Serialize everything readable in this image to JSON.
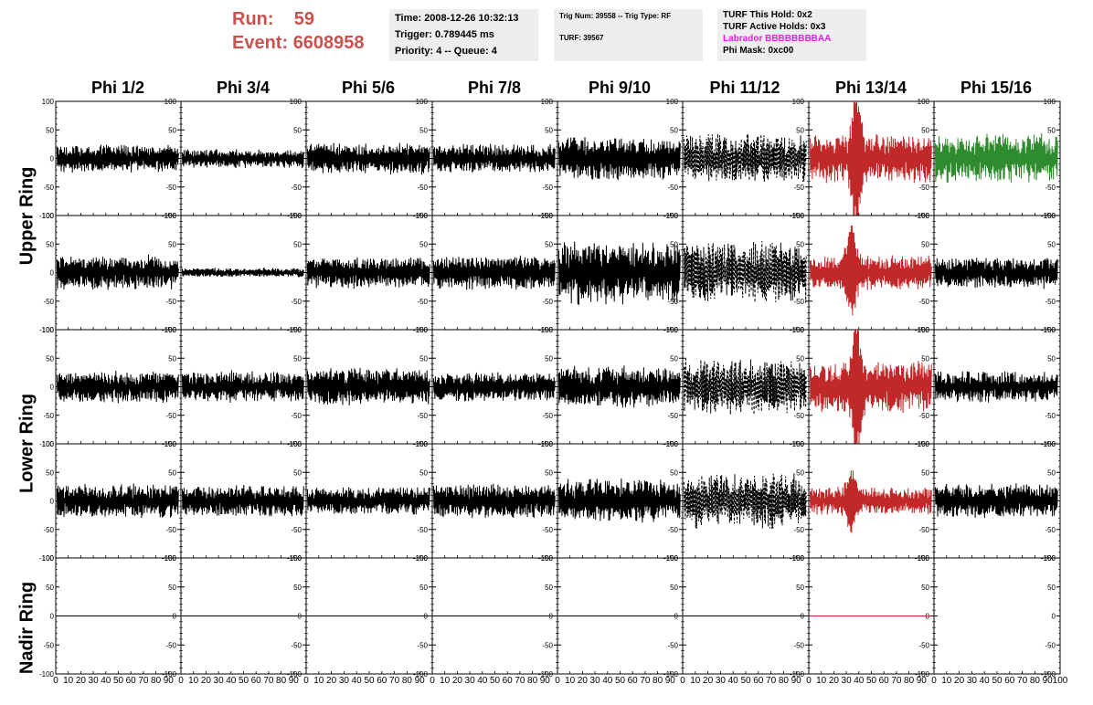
{
  "header": {
    "run_label": "Run:",
    "run_value": "59",
    "event_label": "Event:",
    "event_value": "6608958",
    "info_time": {
      "time": "Time: 2008-12-26 10:32:13",
      "trigger": "Trigger: 0.789445 ms",
      "priority": "Priority: 4 -- Queue: 4"
    },
    "info_trig": {
      "trig": "Trig Num: 39558 -- Trig Type: RF",
      "turf": "TURF: 39567"
    },
    "info_turf": {
      "this_hold": "TURF This Hold: 0x2",
      "active_holds": "TURF Active Holds: 0x3",
      "labrador": "Labrador BBBBBBBBAA",
      "phi_mask": "Phi Mask: 0xc00"
    }
  },
  "colors": {
    "title_red": "#c9524f",
    "labrador_magenta": "#e61ee6",
    "trace_black": "#000000",
    "trace_red": "#c0282a",
    "trace_green": "#2e8b2e",
    "info_bg": "#eeeeee"
  },
  "columns": [
    "Phi 1/2",
    "Phi 3/4",
    "Phi 5/6",
    "Phi 7/8",
    "Phi 9/10",
    "Phi 11/12",
    "Phi 13/14",
    "Phi 15/16"
  ],
  "rings": [
    "Upper Ring",
    "Lower Ring",
    "Nadir Ring"
  ],
  "chart_data": {
    "type": "line",
    "grid": false,
    "xlim": [
      0,
      100
    ],
    "ylim": [
      -100,
      100
    ],
    "xticks": [
      "0",
      "10",
      "20",
      "30",
      "40",
      "50",
      "60",
      "70",
      "80",
      "90",
      "100"
    ],
    "yticks": [
      "100",
      "50",
      "0",
      "-50",
      "-100"
    ],
    "rows": [
      {
        "ring": "Upper Ring",
        "panels": [
          {
            "amp": 18,
            "color": "black",
            "style": "solid"
          },
          {
            "amp": 12,
            "color": "black",
            "style": "solid"
          },
          {
            "amp": 20,
            "color": "black",
            "style": "solid"
          },
          {
            "amp": 18,
            "color": "black",
            "style": "solid"
          },
          {
            "amp": 28,
            "color": "black",
            "style": "solid"
          },
          {
            "amp": 32,
            "color": "black",
            "style": "dashed"
          },
          {
            "amp": 32,
            "color": "red",
            "style": "solid",
            "peak_x": 38,
            "peak_amp": 100
          },
          {
            "amp": 32,
            "color": "green",
            "style": "solid"
          }
        ]
      },
      {
        "ring": "Upper Ring",
        "panels": [
          {
            "amp": 22,
            "color": "black",
            "style": "solid"
          },
          {
            "amp": 6,
            "color": "black",
            "style": "solid"
          },
          {
            "amp": 20,
            "color": "black",
            "style": "solid"
          },
          {
            "amp": 22,
            "color": "black",
            "style": "solid"
          },
          {
            "amp": 40,
            "color": "black",
            "style": "solid"
          },
          {
            "amp": 40,
            "color": "black",
            "style": "dashed"
          },
          {
            "amp": 22,
            "color": "red",
            "style": "solid",
            "peak_x": 34,
            "peak_amp": 65
          },
          {
            "amp": 20,
            "color": "black",
            "style": "solid"
          }
        ]
      },
      {
        "ring": "Lower Ring",
        "panels": [
          {
            "amp": 20,
            "color": "black",
            "style": "solid"
          },
          {
            "amp": 20,
            "color": "black",
            "style": "solid"
          },
          {
            "amp": 24,
            "color": "black",
            "style": "solid"
          },
          {
            "amp": 18,
            "color": "black",
            "style": "solid"
          },
          {
            "amp": 26,
            "color": "black",
            "style": "solid"
          },
          {
            "amp": 35,
            "color": "black",
            "style": "dashed"
          },
          {
            "amp": 32,
            "color": "red",
            "style": "solid",
            "peak_x": 38,
            "peak_amp": 95
          },
          {
            "amp": 20,
            "color": "black",
            "style": "solid"
          }
        ]
      },
      {
        "ring": "Lower Ring",
        "panels": [
          {
            "amp": 22,
            "color": "black",
            "style": "solid"
          },
          {
            "amp": 20,
            "color": "black",
            "style": "solid"
          },
          {
            "amp": 18,
            "color": "black",
            "style": "solid"
          },
          {
            "amp": 22,
            "color": "black",
            "style": "solid"
          },
          {
            "amp": 28,
            "color": "black",
            "style": "solid"
          },
          {
            "amp": 35,
            "color": "black",
            "style": "dashed"
          },
          {
            "amp": 18,
            "color": "red",
            "style": "solid",
            "peak_x": 34,
            "peak_amp": 40
          },
          {
            "amp": 22,
            "color": "black",
            "style": "solid"
          }
        ]
      },
      {
        "ring": "Nadir Ring",
        "panels": [
          {
            "amp": 0,
            "color": "black",
            "style": "solid"
          },
          {
            "amp": 0,
            "color": "black",
            "style": "solid"
          },
          {
            "amp": 0,
            "color": "black",
            "style": "solid"
          },
          {
            "amp": 0,
            "color": "black",
            "style": "solid"
          },
          {
            "amp": 0,
            "color": "black",
            "style": "solid"
          },
          {
            "amp": 0,
            "color": "black",
            "style": "solid"
          },
          {
            "amp": 0,
            "color": "red",
            "style": "solid"
          },
          {
            "amp": 0,
            "color": "none",
            "style": "solid"
          }
        ]
      }
    ]
  }
}
